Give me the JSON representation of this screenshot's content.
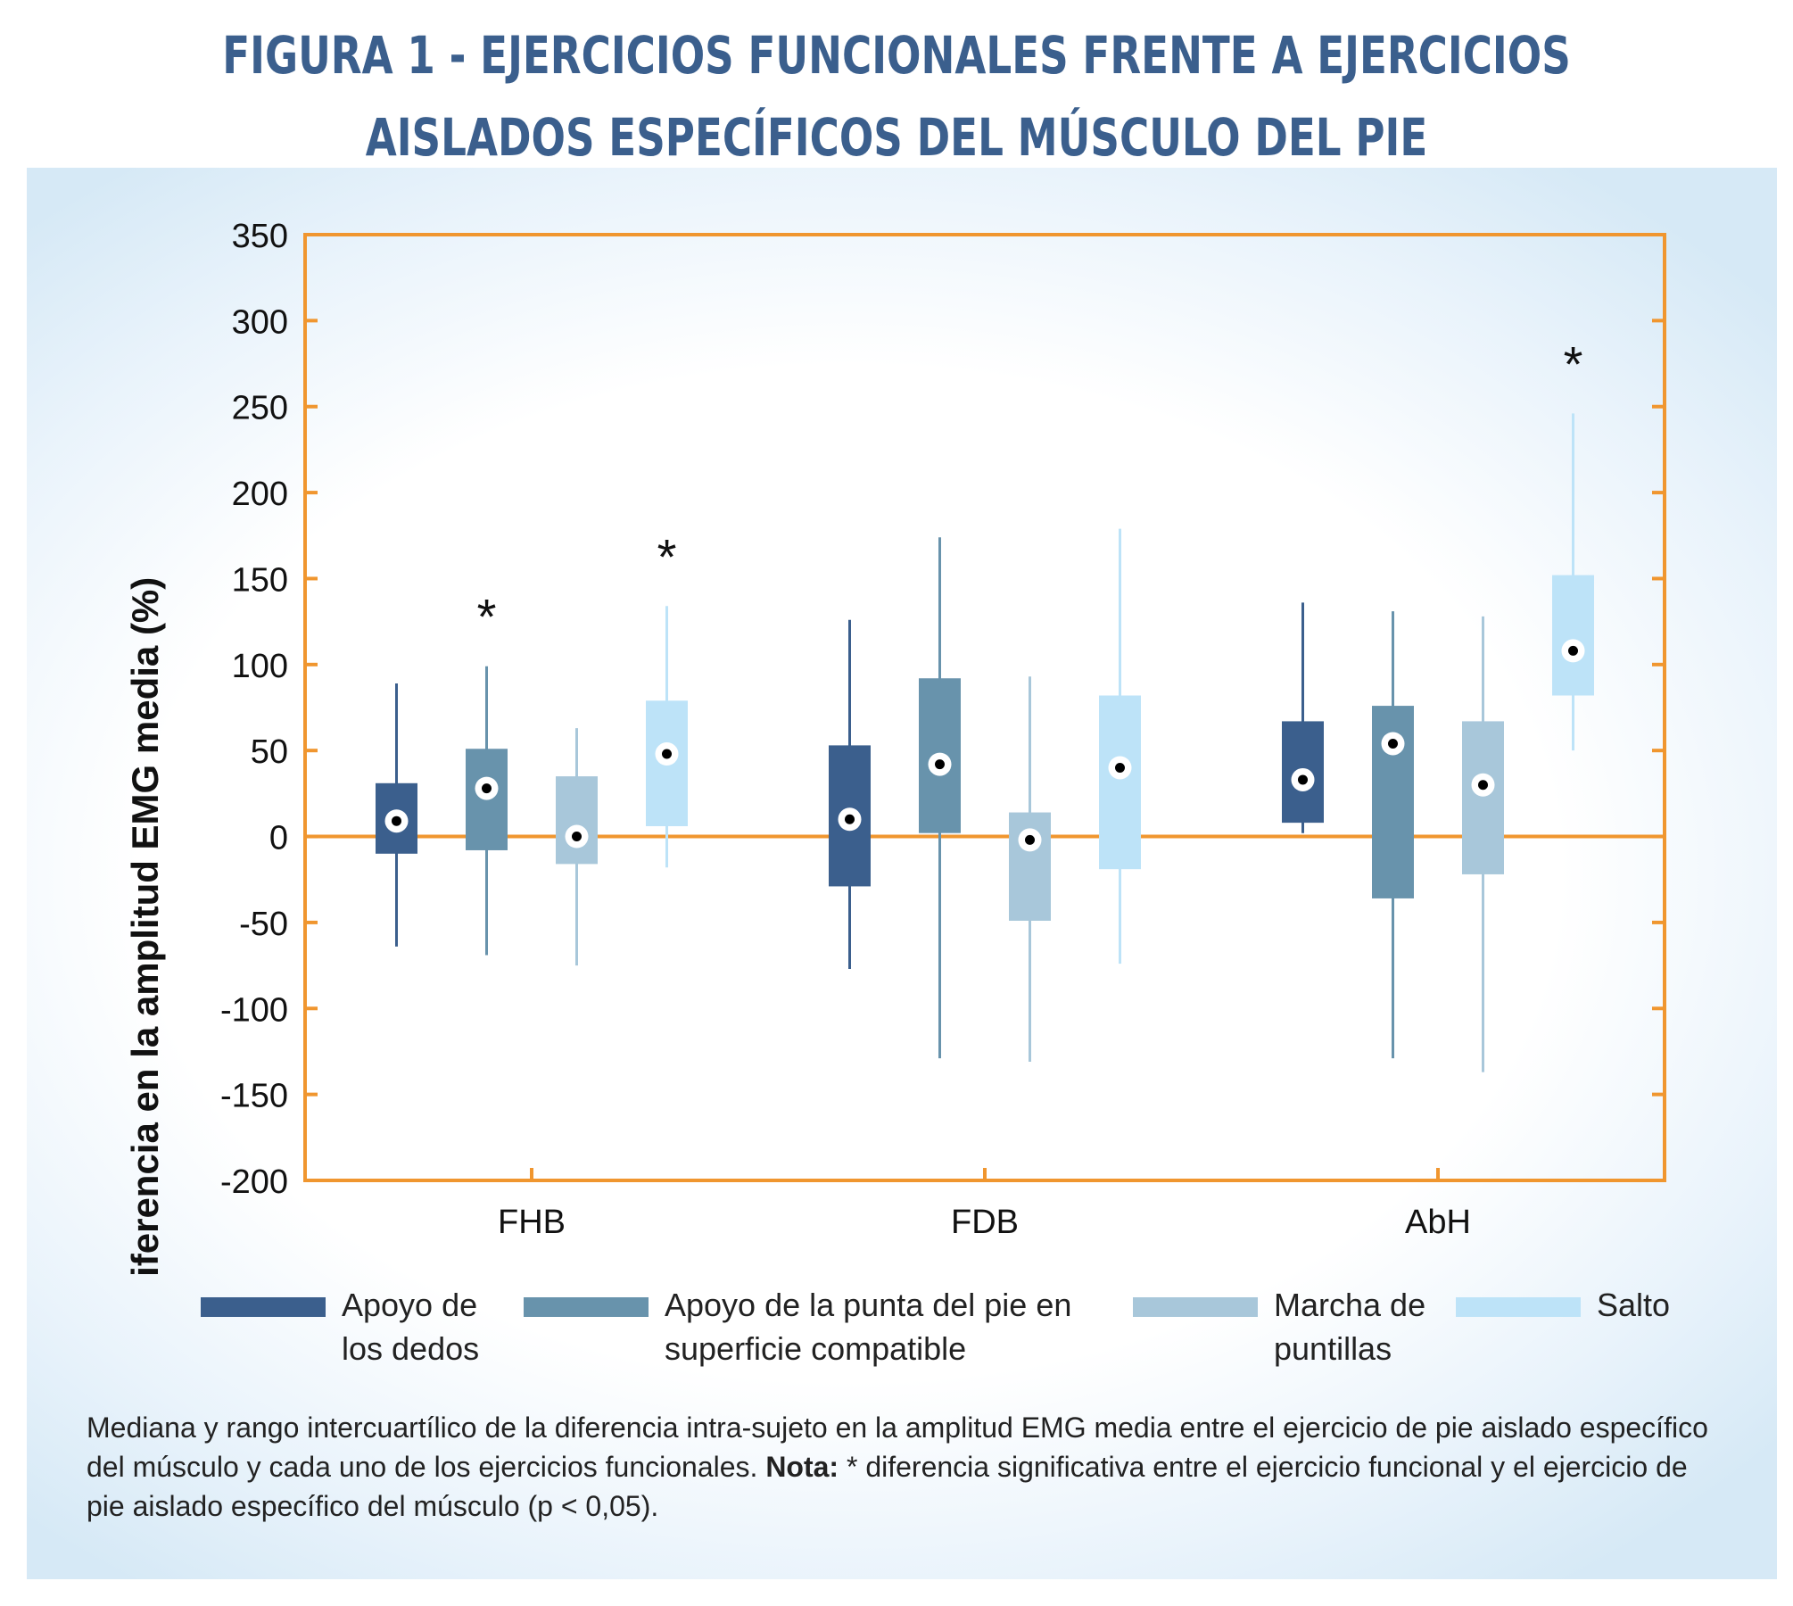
{
  "title": "Figura 1 - Ejercicios funcionales frente a ejercicios aislados específicos del músculo del pie",
  "legend": [
    {
      "label": "Apoyo de\nlos dedos",
      "color": "#3b5f8d"
    },
    {
      "label": "Apoyo de la punta del pie en\nsuperficie compatible",
      "color": "#6893ac"
    },
    {
      "label": "Marcha de\npuntillas",
      "color": "#a8c7da"
    },
    {
      "label": "Salto",
      "color": "#bde3f8"
    }
  ],
  "caption": {
    "text": "Mediana y rango intercuartílico de la diferencia intra-sujeto en la amplitud EMG media entre el ejercicio de pie aislado específico del músculo y cada uno de los ejercicios funcionales. ",
    "note_label": "Nota:",
    "note_text": " * diferencia significativa entre el ejercicio funcional y el ejercicio de pie aislado específico del músculo (p < 0,05)."
  },
  "chart_data": {
    "type": "box",
    "ylabel": "Diferencia en la amplitud EMG media (%)",
    "xlabel": "",
    "ylim": [
      -200,
      350
    ],
    "yticks": [
      350,
      300,
      250,
      200,
      150,
      100,
      50,
      0,
      -50,
      -100,
      -150,
      -200
    ],
    "ytick_labels": [
      "350",
      "300",
      "250",
      "200",
      "150",
      "100",
      "50",
      "0",
      "-50",
      "-100",
      "-150",
      "-200"
    ],
    "categories": [
      "FHB",
      "FDB",
      "AbH"
    ],
    "significance_marker": "*",
    "axis_color": "#f0962f",
    "reference_line": 0,
    "series": [
      {
        "name": "Apoyo de los dedos",
        "color": "#3b5f8d",
        "boxes": [
          {
            "min": -64,
            "q1": -10,
            "median": 9,
            "q3": 31,
            "max": 89,
            "significant": false
          },
          {
            "min": -77,
            "q1": -29,
            "median": 10,
            "q3": 53,
            "max": 126,
            "significant": false
          },
          {
            "min": 2,
            "q1": 8,
            "median": 33,
            "q3": 67,
            "max": 136,
            "significant": false
          }
        ]
      },
      {
        "name": "Apoyo de la punta del pie en superficie compatible",
        "color": "#6893ac",
        "boxes": [
          {
            "min": -69,
            "q1": -8,
            "median": 28,
            "q3": 51,
            "max": 99,
            "significant": true
          },
          {
            "min": -129,
            "q1": 2,
            "median": 42,
            "q3": 92,
            "max": 174,
            "significant": false
          },
          {
            "min": -129,
            "q1": -36,
            "median": 54,
            "q3": 76,
            "max": 131,
            "significant": false
          }
        ]
      },
      {
        "name": "Marcha de puntillas",
        "color": "#a8c7da",
        "boxes": [
          {
            "min": -75,
            "q1": -16,
            "median": 0,
            "q3": 35,
            "max": 63,
            "significant": false
          },
          {
            "min": -131,
            "q1": -49,
            "median": -2,
            "q3": 14,
            "max": 93,
            "significant": false
          },
          {
            "min": -137,
            "q1": -22,
            "median": 30,
            "q3": 67,
            "max": 128,
            "significant": false
          }
        ]
      },
      {
        "name": "Salto",
        "color": "#bde3f8",
        "boxes": [
          {
            "min": -18,
            "q1": 6,
            "median": 48,
            "q3": 79,
            "max": 134,
            "significant": true
          },
          {
            "min": -74,
            "q1": -19,
            "median": 40,
            "q3": 82,
            "max": 179,
            "significant": false
          },
          {
            "min": 50,
            "q1": 82,
            "median": 108,
            "q3": 152,
            "max": 246,
            "significant": true
          }
        ]
      }
    ]
  }
}
